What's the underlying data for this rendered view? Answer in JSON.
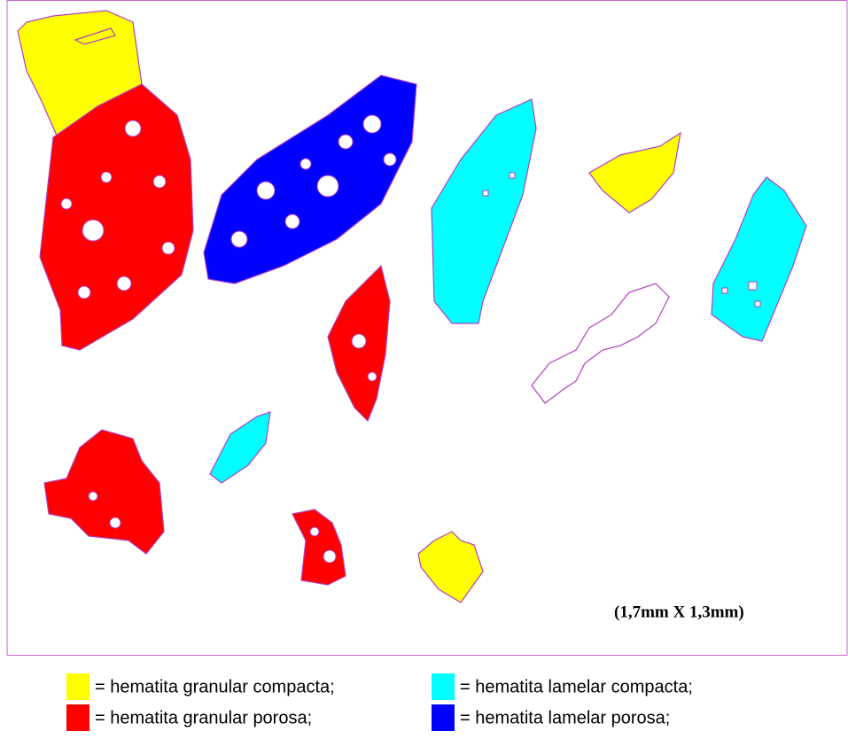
{
  "scale_label": "(1,7mm X 1,3mm)",
  "legend": [
    {
      "label": "= hematita granular compacta;",
      "color": "#ffff00"
    },
    {
      "label": "= hematita lamelar compacta;",
      "color": "#00ffff"
    },
    {
      "label": "= hematita granular porosa;",
      "color": "#ff0000"
    },
    {
      "label": "= hematita lamelar porosa;",
      "color": "#0000ff"
    }
  ]
}
